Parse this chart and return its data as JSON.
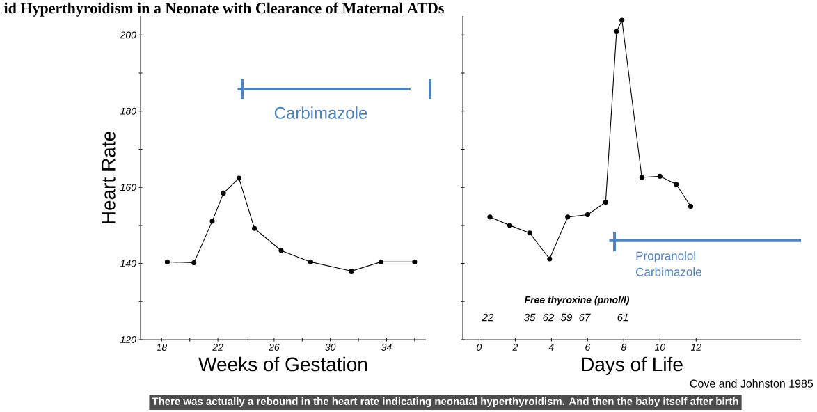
{
  "chart_data": [
    {
      "type": "line",
      "title": "id Hyperthyroidism in a Neonate with Clearance of Maternal ATDs",
      "xlabel": "Weeks of Gestation",
      "ylabel": "Heart Rate",
      "x": [
        18.4,
        20.3,
        21.6,
        22.4,
        23.5,
        24.6,
        26.5,
        28.6,
        31.5,
        33.6,
        36.0
      ],
      "series": [
        {
          "color": "#000000",
          "values": [
            140.4,
            140.2,
            151.1,
            158.5,
            162.4,
            149.2,
            143.4,
            140.4,
            138.0,
            140.4,
            140.4
          ]
        },
        {
          "color": "#4f81bd",
          "marker": "none",
          "x": [
            23.4,
            35.7
          ],
          "values": [
            185.8,
            185.8
          ]
        }
      ],
      "xlim": [
        16.5,
        36.8
      ],
      "ylim": [
        120,
        205
      ],
      "xticks": [
        18,
        {
          "value": 20,
          "label": null
        },
        22,
        {
          "value": 24,
          "label": null
        },
        26,
        {
          "value": 28,
          "label": null
        },
        30,
        {
          "value": 32,
          "label": null
        },
        34,
        {
          "value": 36,
          "label": null
        }
      ],
      "yticks": [
        120,
        {
          "value": 130,
          "label": null
        },
        140,
        {
          "value": 150,
          "label": null
        },
        160,
        {
          "value": 170,
          "label": null
        },
        180,
        {
          "value": 190,
          "label": null
        },
        200
      ],
      "annotations": [
        "There was actually a rebound in the heart rate indicating neonatal hyperthyroidism. And then the baby itself after birth",
        "Carbimazole"
      ],
      "marker": "circle",
      "line_style": "solid"
    },
    {
      "type": "line",
      "xlabel": "Days of Life",
      "x": [
        0.6,
        1.7,
        2.8,
        3.9,
        4.9,
        6.0,
        7.0,
        7.6,
        7.9,
        9.0,
        10.0,
        10.9,
        11.7
      ],
      "series": [
        {
          "color": "#000000",
          "values": [
            152.2,
            150.0,
            148.0,
            141.2,
            152.2,
            152.8,
            156.1,
            200.9,
            203.9,
            162.6,
            162.9,
            160.8,
            155.0
          ]
        },
        {
          "color": "#4f81bd",
          "marker": "none",
          "x": [
            7.2,
            17.8
          ],
          "values": [
            146.0,
            146.0
          ]
        }
      ],
      "xlim": [
        -0.9,
        17.8
      ],
      "ylim": [
        120,
        205
      ],
      "xticks": [
        0,
        2,
        4,
        6,
        8,
        10,
        12
      ],
      "yticks": [
        120,
        {
          "value": 130,
          "label": null
        },
        140,
        {
          "value": 150,
          "label": null
        },
        160,
        {
          "value": 170,
          "label": null
        },
        180,
        {
          "value": 190,
          "label": null
        },
        200
      ],
      "annotations": [
        "Free thyroxine (pmol/l)",
        "22",
        "35",
        "62",
        "59",
        "67",
        "61",
        "Cove and Johnston 1985",
        "Propranolol Carbimazole"
      ],
      "tick_labels": "x",
      "marker": "circle",
      "line_style": "solid"
    }
  ]
}
